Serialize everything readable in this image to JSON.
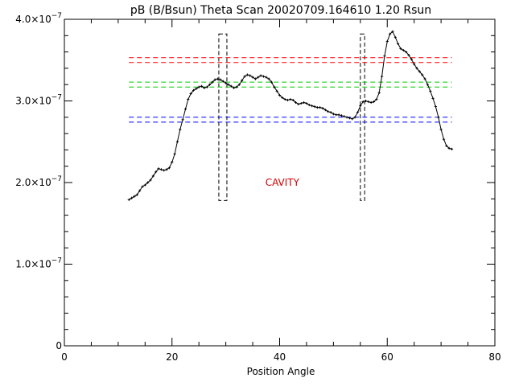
{
  "chart_data": {
    "type": "line",
    "title": "pB (B/Bsun) Theta Scan 20020709.164610 1.20 Rsun",
    "xlabel": "Position Angle",
    "ylabel": "",
    "xlim": [
      0,
      80
    ],
    "ylim": [
      0,
      4e-07
    ],
    "x_ticks": [
      0,
      20,
      40,
      60,
      80
    ],
    "x_ticklabels": [
      "0",
      "20",
      "40",
      "60",
      "80"
    ],
    "y_ticks": [
      0,
      1e-07,
      2e-07,
      3e-07,
      4e-07
    ],
    "y_ticklabels": [
      {
        "mantissa": "0",
        "exp": ""
      },
      {
        "mantissa": "1.0×10",
        "exp": "−7"
      },
      {
        "mantissa": "2.0×10",
        "exp": "−7"
      },
      {
        "mantissa": "3.0×10",
        "exp": "−7"
      },
      {
        "mantissa": "4.0×10",
        "exp": "−7"
      }
    ],
    "grid": false,
    "annotations": [
      {
        "text": "CAVITY",
        "x": 40.5,
        "y": 2e-07,
        "color": "#cc0000"
      }
    ],
    "series": [
      {
        "color": "#000000",
        "marker": "plus",
        "x": [
          12.0,
          12.5,
          13.0,
          13.5,
          14.0,
          14.5,
          15.0,
          15.5,
          16.0,
          16.5,
          17.0,
          17.5,
          18.0,
          18.5,
          19.0,
          19.5,
          20.0,
          20.5,
          21.0,
          21.5,
          22.0,
          22.5,
          23.0,
          23.5,
          24.0,
          24.5,
          25.0,
          25.5,
          26.0,
          26.5,
          27.0,
          27.5,
          28.0,
          28.5,
          29.0,
          29.5,
          30.0,
          30.5,
          31.0,
          31.5,
          32.0,
          32.5,
          33.0,
          33.5,
          34.0,
          34.5,
          35.0,
          35.5,
          36.0,
          36.5,
          37.0,
          37.5,
          38.0,
          38.5,
          39.0,
          39.5,
          40.0,
          40.5,
          41.0,
          41.5,
          42.0,
          42.5,
          43.0,
          43.5,
          44.0,
          44.5,
          45.0,
          45.5,
          46.0,
          46.5,
          47.0,
          47.5,
          48.0,
          48.5,
          49.0,
          49.5,
          50.0,
          50.5,
          51.0,
          51.5,
          52.0,
          52.5,
          53.0,
          53.5,
          54.0,
          54.5,
          55.0,
          55.5,
          56.0,
          56.5,
          57.0,
          57.5,
          58.0,
          58.5,
          59.0,
          59.5,
          60.0,
          60.5,
          61.0,
          61.5,
          62.0,
          62.5,
          63.0,
          63.5,
          64.0,
          64.5,
          65.0,
          65.5,
          66.0,
          66.5,
          67.0,
          67.5,
          68.0,
          68.5,
          69.0,
          69.5,
          70.0,
          70.5,
          71.0,
          71.5,
          72.0
        ],
        "y": [
          1.79e-07,
          1.81e-07,
          1.83e-07,
          1.85e-07,
          1.9e-07,
          1.95e-07,
          1.97e-07,
          2e-07,
          2.03e-07,
          2.08e-07,
          2.13e-07,
          2.17e-07,
          2.16e-07,
          2.15e-07,
          2.16e-07,
          2.18e-07,
          2.25e-07,
          2.35e-07,
          2.5e-07,
          2.65e-07,
          2.77e-07,
          2.9e-07,
          3.02e-07,
          3.09e-07,
          3.13e-07,
          3.15e-07,
          3.17e-07,
          3.18e-07,
          3.16e-07,
          3.17e-07,
          3.2e-07,
          3.23e-07,
          3.26e-07,
          3.27e-07,
          3.26e-07,
          3.24e-07,
          3.22e-07,
          3.2e-07,
          3.18e-07,
          3.16e-07,
          3.17e-07,
          3.2e-07,
          3.25e-07,
          3.3e-07,
          3.32e-07,
          3.31e-07,
          3.29e-07,
          3.27e-07,
          3.29e-07,
          3.31e-07,
          3.3e-07,
          3.29e-07,
          3.27e-07,
          3.23e-07,
          3.17e-07,
          3.12e-07,
          3.07e-07,
          3.04e-07,
          3.02e-07,
          3.01e-07,
          3.02e-07,
          3.01e-07,
          2.98e-07,
          2.96e-07,
          2.97e-07,
          2.98e-07,
          2.97e-07,
          2.95e-07,
          2.94e-07,
          2.93e-07,
          2.92e-07,
          2.92e-07,
          2.91e-07,
          2.89e-07,
          2.87e-07,
          2.86e-07,
          2.84e-07,
          2.83e-07,
          2.83e-07,
          2.82e-07,
          2.81e-07,
          2.8e-07,
          2.79e-07,
          2.78e-07,
          2.8e-07,
          2.86e-07,
          2.94e-07,
          2.99e-07,
          3e-07,
          2.99e-07,
          2.98e-07,
          2.99e-07,
          3.02e-07,
          3.1e-07,
          3.3e-07,
          3.55e-07,
          3.73e-07,
          3.82e-07,
          3.85e-07,
          3.78e-07,
          3.7e-07,
          3.64e-07,
          3.62e-07,
          3.6e-07,
          3.56e-07,
          3.51e-07,
          3.45e-07,
          3.4e-07,
          3.36e-07,
          3.32e-07,
          3.27e-07,
          3.2e-07,
          3.12e-07,
          3.03e-07,
          2.93e-07,
          2.8e-07,
          2.65e-07,
          2.53e-07,
          2.45e-07,
          2.42e-07,
          2.41e-07
        ]
      }
    ],
    "reference_lines": [
      {
        "color": "#ff0000",
        "y": [
          3.53e-07,
          3.47e-07
        ],
        "x": [
          12,
          72
        ]
      },
      {
        "color": "#00cc00",
        "y": [
          3.23e-07,
          3.17e-07
        ],
        "x": [
          12,
          72
        ]
      },
      {
        "color": "#0000ff",
        "y": [
          2.8e-07,
          2.74e-07
        ],
        "x": [
          12,
          72
        ]
      }
    ],
    "regions": [
      {
        "x": [
          28.7,
          30.2
        ],
        "y": [
          1.78e-07,
          3.82e-07
        ],
        "style": "dashed"
      },
      {
        "x": [
          55.0,
          55.8
        ],
        "y": [
          1.78e-07,
          3.82e-07
        ],
        "style": "dashed"
      }
    ]
  }
}
